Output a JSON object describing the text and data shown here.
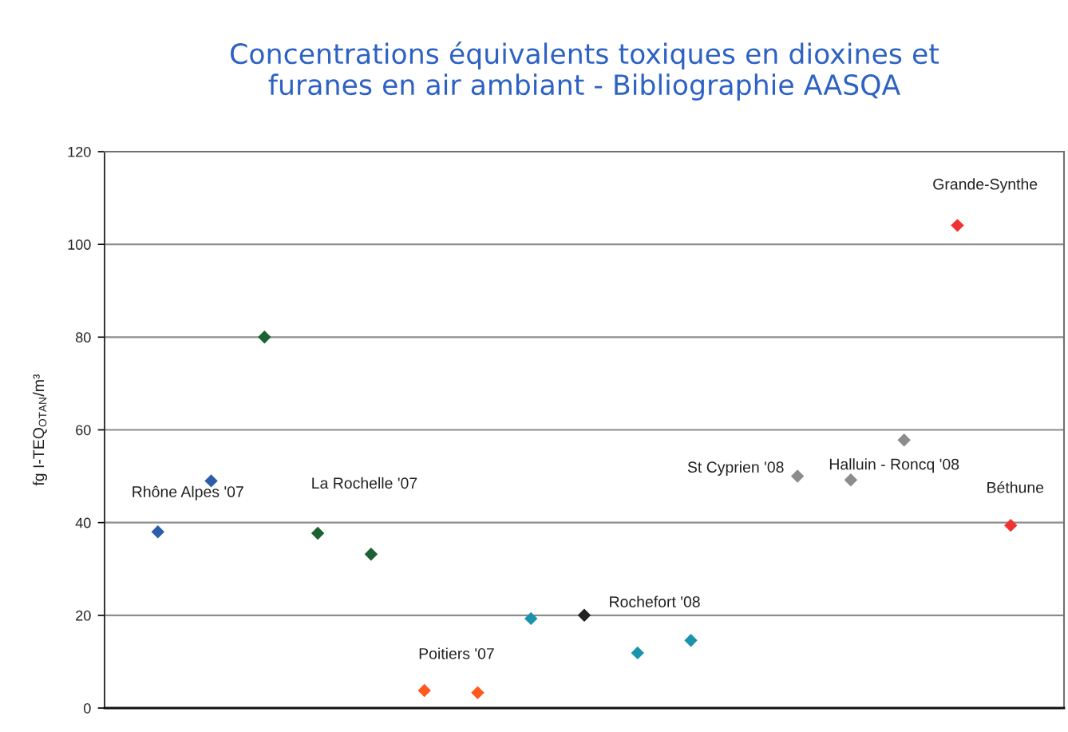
{
  "chart_data": {
    "type": "scatter",
    "title": "Concentrations équivalents toxiques en dioxines et\nfuranes en air ambiant - Bibliographie AASQA",
    "ylabel": "fg I-TEQ$_{OTAN}$/m³",
    "categories": [
      null,
      null,
      null,
      null,
      null,
      null,
      null,
      null,
      null,
      null,
      null,
      null,
      null,
      null,
      null,
      null,
      null
    ],
    "series": [
      {
        "name": "Rhône Alpes '07",
        "color": "#2d5da8",
        "values": [
          38,
          49,
          null,
          null,
          null,
          null,
          null,
          null,
          null,
          null,
          null,
          null,
          null,
          null,
          null,
          null,
          null
        ]
      },
      {
        "name": "La Rochelle '07",
        "color": "#1b6131",
        "values": [
          null,
          null,
          80,
          37.7,
          33.2,
          null,
          null,
          null,
          null,
          null,
          null,
          null,
          null,
          null,
          null,
          null,
          null
        ]
      },
      {
        "name": "Poitiers '07",
        "color": "#ff5a1e",
        "values": [
          null,
          null,
          null,
          null,
          null,
          3.8,
          3.3,
          null,
          null,
          null,
          null,
          null,
          null,
          null,
          null,
          null,
          null
        ]
      },
      {
        "name": "Rochefort '08",
        "color": "#1c93ad",
        "colors": [
          null,
          null,
          null,
          null,
          null,
          null,
          null,
          "#1c93ad",
          "#222222",
          "#1c93ad",
          "#1c93ad",
          null,
          null,
          null,
          null,
          null,
          null
        ],
        "values": [
          null,
          null,
          null,
          null,
          null,
          null,
          null,
          19.3,
          20,
          11.9,
          14.6,
          null,
          null,
          null,
          null,
          null,
          null
        ]
      },
      {
        "name": "St Cyprien '08",
        "color": "#8c8c8c",
        "values": [
          null,
          null,
          null,
          null,
          null,
          null,
          null,
          null,
          null,
          null,
          null,
          null,
          50,
          null,
          null,
          null,
          null
        ]
      },
      {
        "name": "Halluin - Roncq '08",
        "color": "#8c8c8c",
        "values": [
          null,
          null,
          null,
          null,
          null,
          null,
          null,
          null,
          null,
          null,
          null,
          null,
          null,
          49.2,
          57.8,
          null,
          null
        ]
      },
      {
        "name": "Grande-Synthe",
        "color": "#f03232",
        "values": [
          null,
          null,
          null,
          null,
          null,
          null,
          null,
          null,
          null,
          null,
          null,
          null,
          null,
          null,
          null,
          104.1,
          null
        ]
      },
      {
        "name": "Béthune",
        "color": "#f03232",
        "values": [
          null,
          null,
          null,
          null,
          null,
          null,
          null,
          null,
          null,
          null,
          null,
          null,
          null,
          null,
          null,
          null,
          39.4
        ]
      }
    ],
    "ylim": [
      0,
      120
    ],
    "yticks": [
      0,
      20,
      40,
      60,
      80,
      100,
      120
    ],
    "grid": "y",
    "marker": "diamond",
    "tick_labels": "y"
  }
}
